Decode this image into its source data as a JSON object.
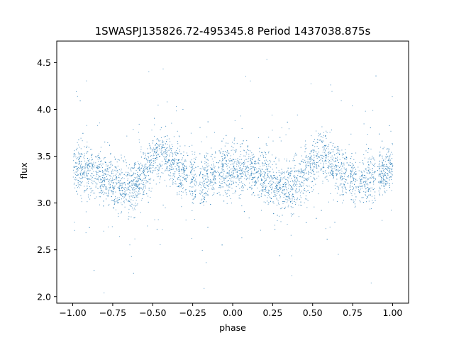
{
  "chart_data": {
    "type": "scatter",
    "title": "1SWASPJ135826.72-495345.8 Period 1437038.875s",
    "xlabel": "phase",
    "ylabel": "flux",
    "xlim": [
      -1.1,
      1.1
    ],
    "ylim": [
      1.93,
      4.73
    ],
    "xticks": [
      -1.0,
      -0.75,
      -0.5,
      -0.25,
      0.0,
      0.25,
      0.5,
      0.75,
      1.0
    ],
    "xtick_labels": [
      "−1.00",
      "−0.75",
      "−0.50",
      "−0.25",
      "0.00",
      "0.25",
      "0.50",
      "0.75",
      "1.00"
    ],
    "yticks": [
      2.0,
      2.5,
      3.0,
      3.5,
      4.0,
      4.5
    ],
    "ytick_labels": [
      "2.0",
      "2.5",
      "3.0",
      "3.5",
      "4.0",
      "4.5"
    ],
    "grid": false,
    "legend": "none",
    "series_color": "#1f77b4",
    "profile": {
      "description_phase": [
        -1.0,
        -0.9,
        -0.8,
        -0.7,
        -0.6,
        -0.5,
        -0.45,
        -0.4,
        -0.3,
        -0.2,
        -0.1,
        0.0,
        0.1,
        0.2,
        0.3,
        0.4,
        0.5,
        0.55,
        0.6,
        0.7,
        0.8,
        0.9,
        1.0
      ],
      "median_flux": [
        3.38,
        3.35,
        3.28,
        3.15,
        3.2,
        3.45,
        3.5,
        3.45,
        3.3,
        3.22,
        3.3,
        3.38,
        3.35,
        3.28,
        3.15,
        3.2,
        3.45,
        3.5,
        3.45,
        3.3,
        3.22,
        3.3,
        3.38
      ]
    }
  }
}
